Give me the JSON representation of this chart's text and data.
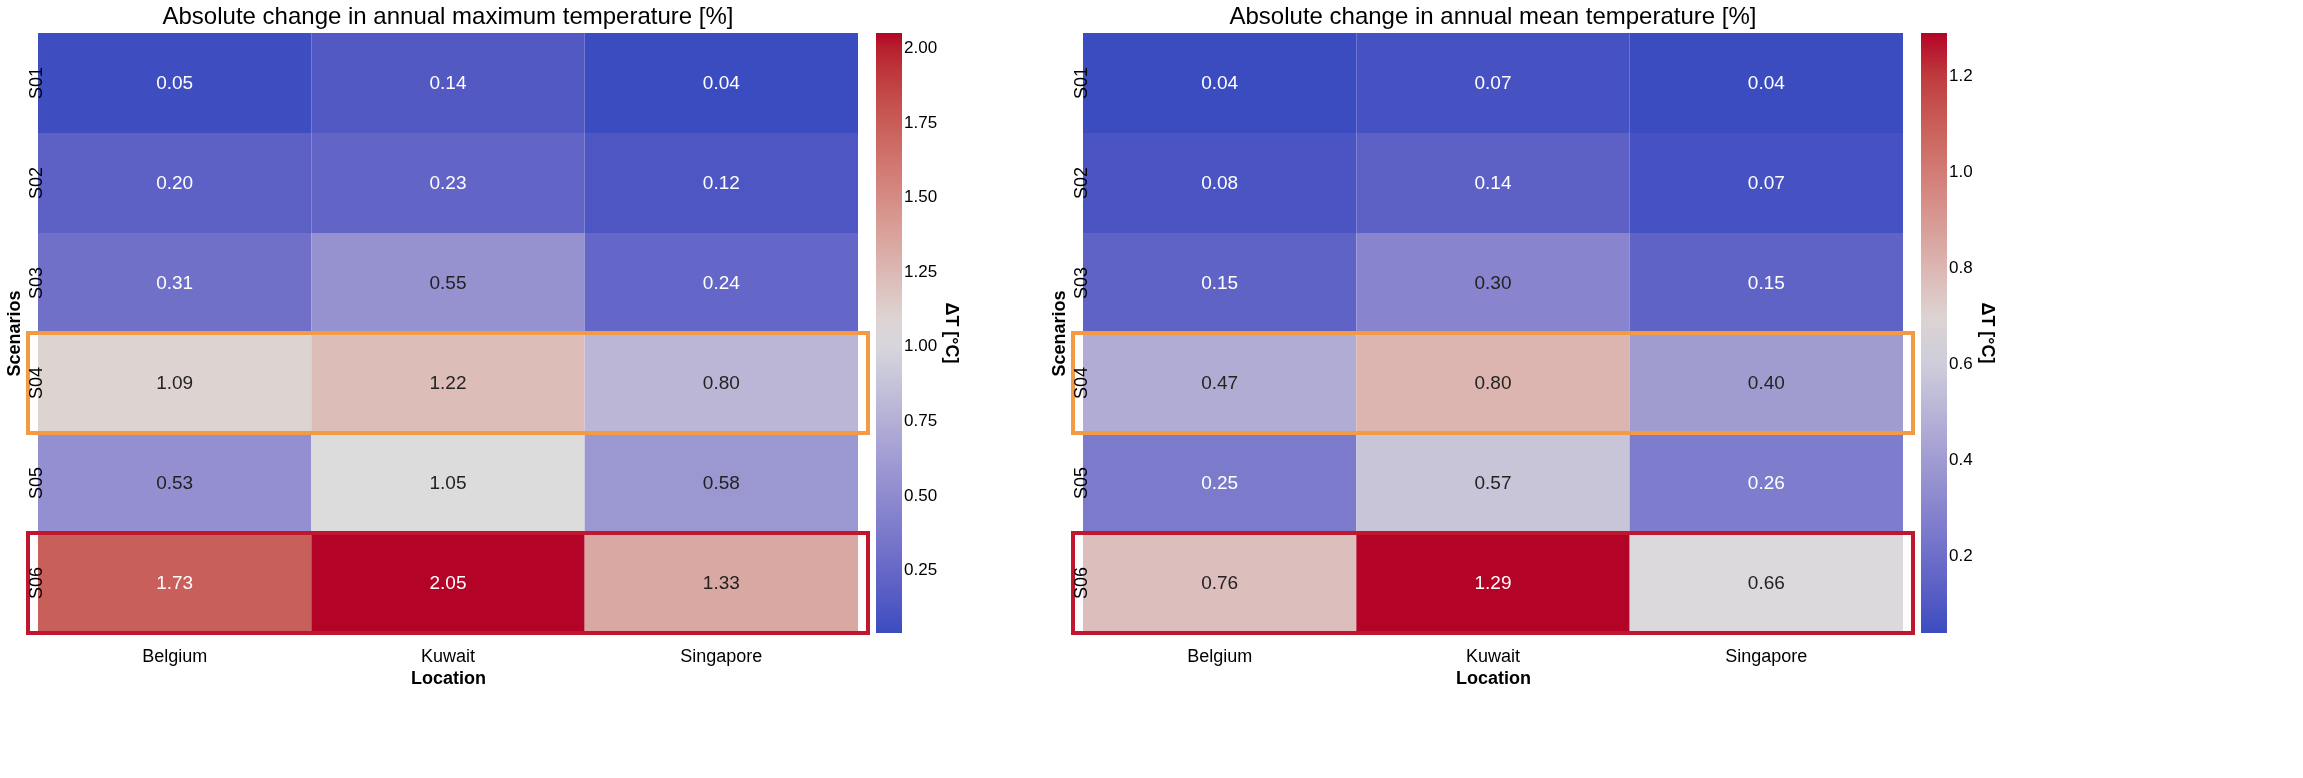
{
  "chart_data": [
    {
      "type": "heatmap",
      "title": "Absolute change in annual maximum temperature  [%]",
      "xlabel": "Location",
      "ylabel": "Scenarios",
      "clabel": "ΔT [°C]",
      "categories": [
        "Belgium",
        "Kuwait",
        "Singapore"
      ],
      "y_categories": [
        "S01",
        "S02",
        "S03",
        "S04",
        "S05",
        "S06"
      ],
      "cells": [
        [
          0.05,
          0.14,
          0.04
        ],
        [
          0.2,
          0.23,
          0.12
        ],
        [
          0.31,
          0.55,
          0.24
        ],
        [
          1.09,
          1.22,
          0.8
        ],
        [
          0.53,
          1.05,
          0.58
        ],
        [
          1.73,
          2.05,
          1.33
        ]
      ],
      "cell_labels": [
        [
          "0.05",
          "0.14",
          "0.04"
        ],
        [
          "0.20",
          "0.23",
          "0.12"
        ],
        [
          "0.31",
          "0.55",
          "0.24"
        ],
        [
          "1.09",
          "1.22",
          "0.80"
        ],
        [
          "0.53",
          "1.05",
          "0.58"
        ],
        [
          "1.73",
          "2.05",
          "1.33"
        ]
      ],
      "clim": [
        0.04,
        2.05
      ],
      "cticks": [
        {
          "value": 0.25,
          "label": "0.25"
        },
        {
          "value": 0.5,
          "label": "0.50"
        },
        {
          "value": 0.75,
          "label": "0.75"
        },
        {
          "value": 1.0,
          "label": "1.00"
        },
        {
          "value": 1.25,
          "label": "1.25"
        },
        {
          "value": 1.5,
          "label": "1.50"
        },
        {
          "value": 1.75,
          "label": "1.75"
        },
        {
          "value": 2.0,
          "label": "2.00"
        }
      ],
      "bands": [
        {
          "axis": "y",
          "from": "S04",
          "to": "S04",
          "color": "#f39a45"
        },
        {
          "axis": "y",
          "from": "S06",
          "to": "S06",
          "color": "#c0172f"
        }
      ]
    },
    {
      "type": "heatmap",
      "title": "Absolute change in annual mean temperature  [%]",
      "xlabel": "Location",
      "ylabel": "Scenarios",
      "clabel": "ΔT [°C]",
      "categories": [
        "Belgium",
        "Kuwait",
        "Singapore"
      ],
      "y_categories": [
        "S01",
        "S02",
        "S03",
        "S04",
        "S05",
        "S06"
      ],
      "cells": [
        [
          0.04,
          0.07,
          0.04
        ],
        [
          0.08,
          0.14,
          0.07
        ],
        [
          0.15,
          0.3,
          0.15
        ],
        [
          0.47,
          0.8,
          0.4
        ],
        [
          0.25,
          0.57,
          0.26
        ],
        [
          0.76,
          1.29,
          0.66
        ]
      ],
      "cell_labels": [
        [
          "0.04",
          "0.07",
          "0.04"
        ],
        [
          "0.08",
          "0.14",
          "0.07"
        ],
        [
          "0.15",
          "0.30",
          "0.15"
        ],
        [
          "0.47",
          "0.80",
          "0.40"
        ],
        [
          "0.25",
          "0.57",
          "0.26"
        ],
        [
          "0.76",
          "1.29",
          "0.66"
        ]
      ],
      "clim": [
        0.04,
        1.29
      ],
      "cticks": [
        {
          "value": 0.2,
          "label": "0.2"
        },
        {
          "value": 0.4,
          "label": "0.4"
        },
        {
          "value": 0.6,
          "label": "0.6"
        },
        {
          "value": 0.8,
          "label": "0.8"
        },
        {
          "value": 1.0,
          "label": "1.0"
        },
        {
          "value": 1.2,
          "label": "1.2"
        }
      ],
      "bands": [
        {
          "axis": "y",
          "from": "S04",
          "to": "S04",
          "color": "#f39a45"
        },
        {
          "axis": "y",
          "from": "S06",
          "to": "S06",
          "color": "#c0172f"
        }
      ]
    }
  ]
}
